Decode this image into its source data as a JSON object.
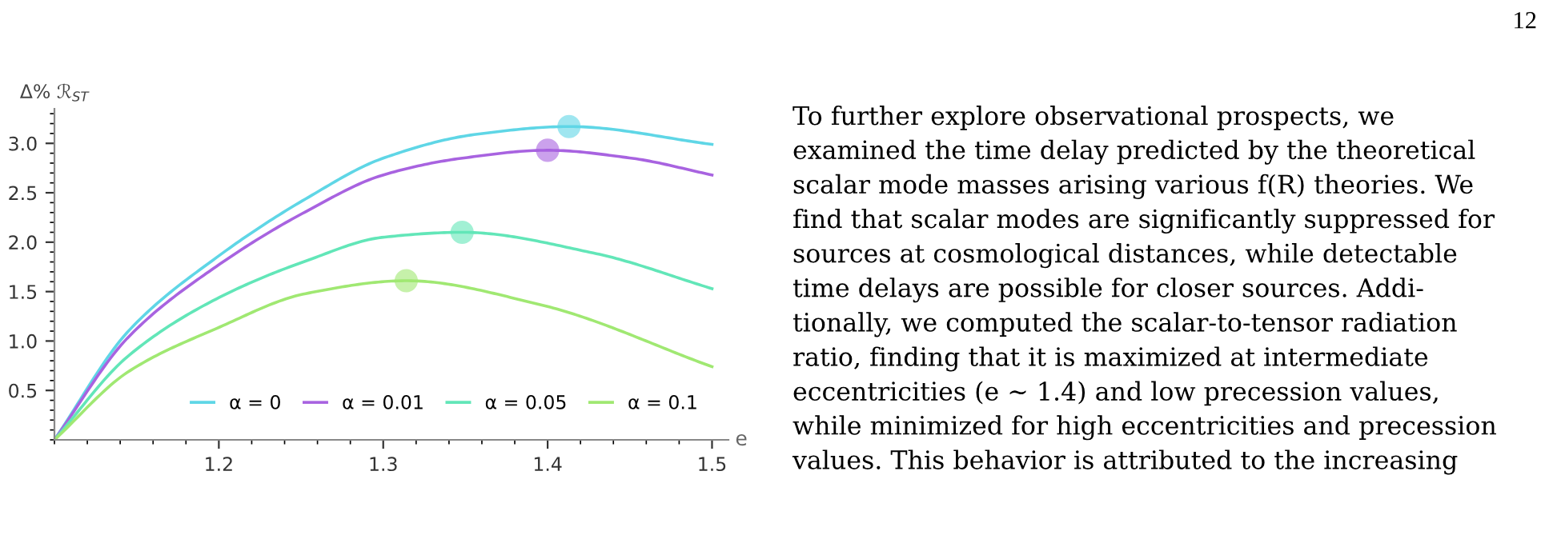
{
  "chart_data": {
    "type": "line",
    "xlabel": "e",
    "ylabel": "Δ% ℛ$_{ST}$",
    "series": [
      {
        "name": "α = 0",
        "color": "#5fd6e6",
        "x": [
          1.1,
          1.145,
          1.199,
          1.253,
          1.3,
          1.356,
          1.413,
          1.5
        ],
        "values": [
          0,
          1.1,
          1.85,
          2.44,
          2.85,
          3.09,
          3.17,
          2.99
        ]
      },
      {
        "name": "α = 0.01",
        "color": "#a863e0",
        "x": [
          1.1,
          1.145,
          1.199,
          1.253,
          1.3,
          1.348,
          1.4,
          1.451,
          1.5
        ],
        "values": [
          0,
          1.04,
          1.76,
          2.31,
          2.68,
          2.85,
          2.93,
          2.85,
          2.68
        ]
      },
      {
        "name": "α = 0.05",
        "color": "#62e6b8",
        "x": [
          1.1,
          1.145,
          1.199,
          1.253,
          1.3,
          1.348,
          1.428,
          1.5
        ],
        "values": [
          0,
          0.85,
          1.43,
          1.81,
          2.05,
          2.1,
          1.89,
          1.53
        ]
      },
      {
        "name": "α = 0.1",
        "color": "#a0e872",
        "x": [
          1.1,
          1.145,
          1.199,
          1.253,
          1.314,
          1.395,
          1.5
        ],
        "values": [
          0,
          0.69,
          1.13,
          1.48,
          1.61,
          1.37,
          0.74
        ]
      },
      {
        "type": "scatter",
        "color": "#5fd6e6",
        "x": [
          1.413
        ],
        "values": [
          3.17
        ]
      },
      {
        "type": "scatter",
        "color": "#a863e0",
        "x": [
          1.4
        ],
        "values": [
          2.93
        ]
      },
      {
        "type": "scatter",
        "color": "#62e6b8",
        "x": [
          1.348
        ],
        "values": [
          2.1
        ]
      },
      {
        "type": "scatter",
        "color": "#a0e872",
        "x": [
          1.314
        ],
        "values": [
          1.61
        ]
      }
    ],
    "xlim": [
      1.1,
      1.51
    ],
    "ylim": [
      0,
      3.35
    ],
    "xticks": [
      1.2,
      1.3,
      1.4,
      1.5
    ],
    "yticks": [
      0.5,
      {
        "value": 1,
        "label": "1.0"
      },
      1.5,
      {
        "value": 2,
        "label": "2.0"
      },
      2.5,
      {
        "value": 3,
        "label": "3.0"
      }
    ],
    "grid": false,
    "legend": "bottom right",
    "line_style": "solid",
    "annotations": [
      "12",
      "To further explore observational prospects, we\nexamined the time delay predicted by the theoretical\nscalar mode masses arising various f(R) theories. We\nfind that scalar modes are significantly suppressed for\nsources at cosmological distances, while detectable\ntime delays are possible for closer sources. Addi-\ntionally, we computed the scalar-to-tensor radiation\nratio, finding that it is maximized at intermediate\neccentricities (e ∼ 1.4) and low precession values,\nwhile minimized for high eccentricities and precession\nvalues. This behavior is attributed to the increasing"
    ]
  }
}
